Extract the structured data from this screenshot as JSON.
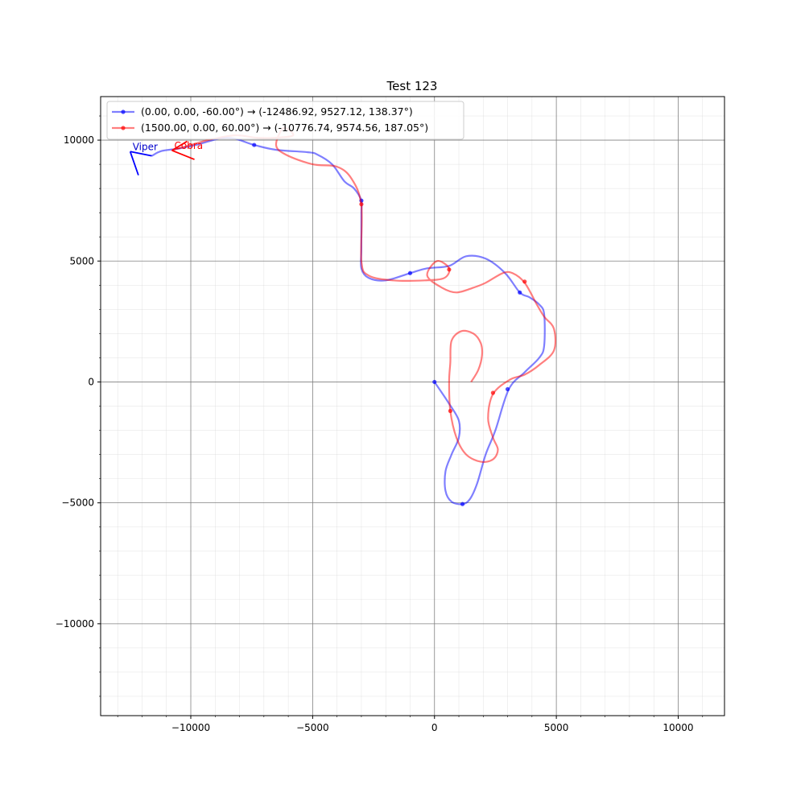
{
  "chart_data": {
    "type": "line",
    "title": "Test 123",
    "xlabel": "",
    "ylabel": "",
    "xlim": [
      -13700,
      11900
    ],
    "ylim": [
      -13800,
      11800
    ],
    "xticks": [
      -10000,
      -5000,
      0,
      5000,
      10000
    ],
    "yticks": [
      -10000,
      -5000,
      0,
      5000,
      10000
    ],
    "xtick_labels": [
      "−10000",
      "−5000",
      "0",
      "5000",
      "10000"
    ],
    "ytick_labels": [
      "−10000",
      "−5000",
      "0",
      "5000",
      "10000"
    ],
    "grid": true,
    "minor_grid": true,
    "legend_position": "top-left",
    "series": [
      {
        "name": "(0.00, 0.00, -60.00°) → (-12486.92, 9527.12, 138.37°)",
        "color": "#0000ff",
        "path": [
          [
            0,
            0
          ],
          [
            600,
            -900
          ],
          [
            1000,
            -1600
          ],
          [
            1000,
            -2300
          ],
          [
            700,
            -3000
          ],
          [
            450,
            -3700
          ],
          [
            450,
            -4500
          ],
          [
            700,
            -4950
          ],
          [
            1150,
            -5050
          ],
          [
            1450,
            -4850
          ],
          [
            1750,
            -4200
          ],
          [
            2100,
            -3000
          ],
          [
            2500,
            -2000
          ],
          [
            3050,
            -300
          ],
          [
            3700,
            400
          ],
          [
            4300,
            1000
          ],
          [
            4500,
            1500
          ],
          [
            4500,
            2800
          ],
          [
            4300,
            3200
          ],
          [
            3900,
            3500
          ],
          [
            3500,
            3700
          ],
          [
            2900,
            4500
          ],
          [
            2100,
            5100
          ],
          [
            1300,
            5200
          ],
          [
            600,
            4800
          ],
          [
            -300,
            4700
          ],
          [
            -1000,
            4500
          ],
          [
            -2000,
            4200
          ],
          [
            -2700,
            4300
          ],
          [
            -3000,
            4700
          ],
          [
            -3000,
            5500
          ],
          [
            -3000,
            7000
          ],
          [
            -3000,
            7500
          ],
          [
            -3300,
            8000
          ],
          [
            -3700,
            8300
          ],
          [
            -4200,
            9000
          ],
          [
            -4800,
            9400
          ],
          [
            -5200,
            9500
          ],
          [
            -6500,
            9600
          ],
          [
            -7400,
            9800
          ],
          [
            -8500,
            10100
          ],
          [
            -9800,
            9800
          ],
          [
            -10500,
            9650
          ],
          [
            -11200,
            9550
          ],
          [
            -11600,
            9350
          ]
        ],
        "markers": [
          [
            0,
            0
          ],
          [
            1150,
            -5050
          ],
          [
            3000,
            -300
          ],
          [
            3500,
            3700
          ],
          [
            -1000,
            4500
          ],
          [
            -3000,
            7500
          ],
          [
            -7400,
            9800
          ]
        ]
      },
      {
        "name": "(1500.00, 0.00, 60.00°) → (-10776.74, 9574.56, 187.05°)",
        "color": "#ff0000",
        "path": [
          [
            1500,
            0
          ],
          [
            1800,
            500
          ],
          [
            1950,
            1100
          ],
          [
            1900,
            1600
          ],
          [
            1600,
            2000
          ],
          [
            1100,
            2100
          ],
          [
            700,
            1700
          ],
          [
            650,
            800
          ],
          [
            600,
            0
          ],
          [
            650,
            -1200
          ],
          [
            900,
            -2300
          ],
          [
            1300,
            -3000
          ],
          [
            1900,
            -3300
          ],
          [
            2400,
            -3200
          ],
          [
            2600,
            -2800
          ],
          [
            2400,
            -2300
          ],
          [
            2200,
            -1500
          ],
          [
            2400,
            -500
          ],
          [
            3100,
            100
          ],
          [
            3700,
            300
          ],
          [
            4300,
            700
          ],
          [
            4900,
            1300
          ],
          [
            4900,
            2200
          ],
          [
            4500,
            2700
          ],
          [
            4200,
            3200
          ],
          [
            3700,
            4100
          ],
          [
            3200,
            4500
          ],
          [
            2800,
            4500
          ],
          [
            2100,
            4100
          ],
          [
            1600,
            3900
          ],
          [
            900,
            3700
          ],
          [
            300,
            3900
          ],
          [
            -300,
            4400
          ],
          [
            100,
            5000
          ],
          [
            600,
            4700
          ],
          [
            400,
            4300
          ],
          [
            -400,
            4200
          ],
          [
            -1700,
            4200
          ],
          [
            -2700,
            4400
          ],
          [
            -3000,
            5000
          ],
          [
            -3000,
            7300
          ],
          [
            -3400,
            8400
          ],
          [
            -4000,
            8900
          ],
          [
            -5000,
            9000
          ],
          [
            -6100,
            9400
          ],
          [
            -6500,
            9800
          ],
          [
            -6200,
            10500
          ],
          [
            -5800,
            10200
          ],
          [
            -6500,
            10100
          ],
          [
            -7300,
            10100
          ],
          [
            -8200,
            10200
          ],
          [
            -9300,
            10000
          ],
          [
            -10000,
            9800
          ],
          [
            -10780,
            9575
          ]
        ],
        "markers": [
          [
            600,
            4650
          ],
          [
            -3000,
            7350
          ],
          [
            650,
            -1200
          ],
          [
            2400,
            -450
          ],
          [
            3700,
            4150
          ]
        ]
      }
    ],
    "annotations": [
      {
        "text": "Viper",
        "x": -12486.92,
        "y": 9527.12,
        "color": "#0000cc"
      },
      {
        "text": "Cobra",
        "x": -10776.74,
        "y": 9574.56,
        "color": "#ff0000"
      }
    ],
    "heading_glyphs": [
      {
        "x": -12486.92,
        "y": 9527.12,
        "segments": [
          [
            [
              -12486.92,
              9527.12
            ],
            [
              -11600,
              9350
            ]
          ],
          [
            [
              -12486.92,
              9527.12
            ],
            [
              -12150,
              8550
            ]
          ]
        ],
        "color": "#0000ff"
      },
      {
        "x": -10776.74,
        "y": 9574.56,
        "segments": [
          [
            [
              -10776.74,
              9574.56
            ],
            [
              -9850,
              9200
            ]
          ],
          [
            [
              -10776.74,
              9574.56
            ],
            [
              -10150,
              9950
            ]
          ]
        ],
        "color": "#ff0000"
      }
    ]
  }
}
